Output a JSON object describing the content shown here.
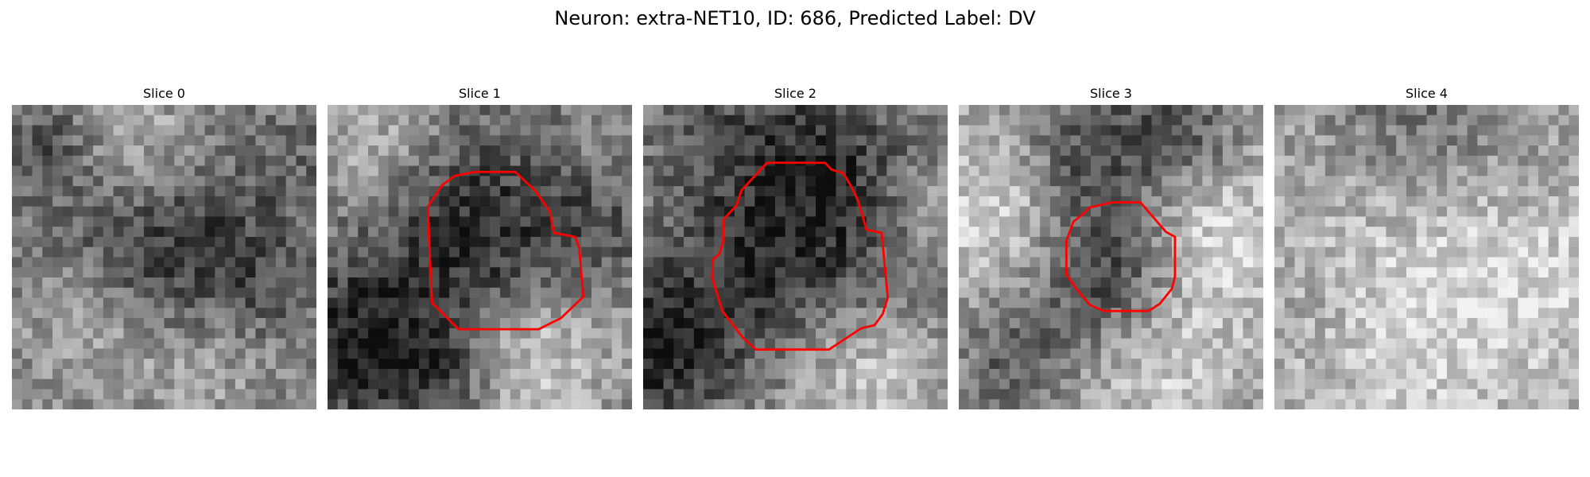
{
  "figure": {
    "title": "Neuron: extra-NET10, ID: 686, Predicted Label: DV"
  },
  "contour_color": "#ff0000",
  "panels": [
    {
      "title": "Slice 0",
      "has_contour": false
    },
    {
      "title": "Slice 1",
      "has_contour": true
    },
    {
      "title": "Slice 2",
      "has_contour": true
    },
    {
      "title": "Slice 3",
      "has_contour": true
    },
    {
      "title": "Slice 4",
      "has_contour": false
    }
  ]
}
